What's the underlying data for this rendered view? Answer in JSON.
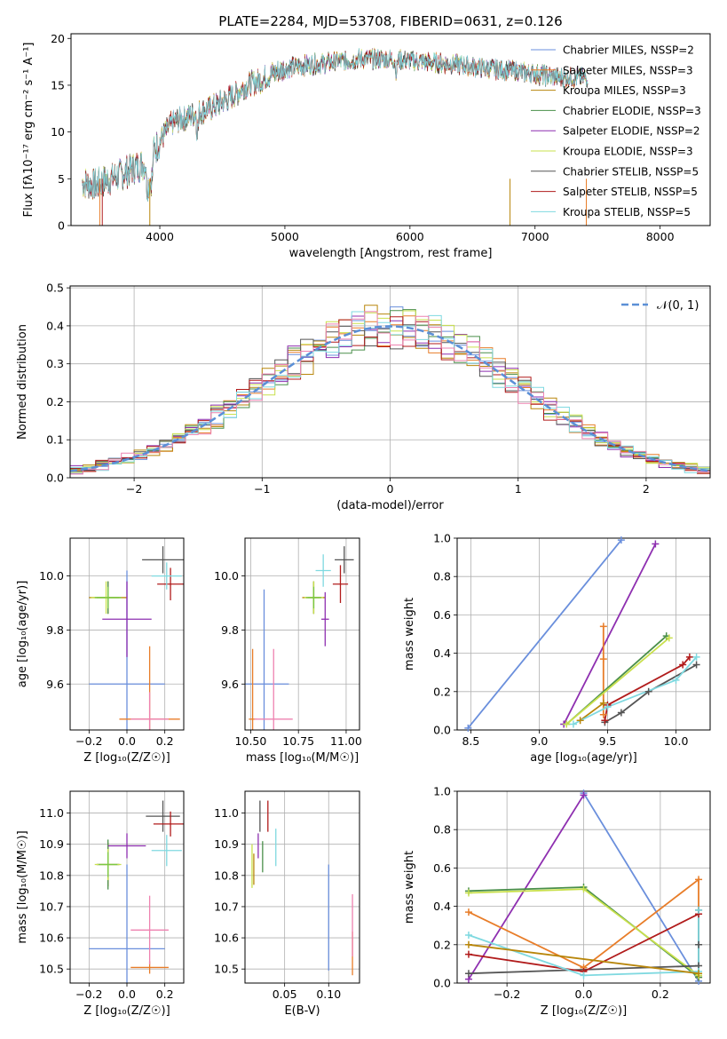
{
  "figure": {
    "title": "PLATE=2284, MJD=53708, FIBERID=0631, z=0.126"
  },
  "palette": [
    "#6a8fdc",
    "#e87d29",
    "#b8860b",
    "#4a8f4a",
    "#8e2fb0",
    "#c9e04d",
    "#555555",
    "#b11b1b",
    "#7fd9e0",
    "#7ac943",
    "#ee82b0"
  ],
  "chart_data": [
    {
      "id": "spectrum",
      "type": "line",
      "xlabel": "wavelength [Angstrom, rest frame]",
      "ylabel": "Flux [fλ10⁻¹⁷ erg cm⁻² s⁻¹ A⁻¹]",
      "xlim": [
        3290,
        8400
      ],
      "ylim": [
        0,
        20.5
      ],
      "xticks": [
        4000,
        5000,
        6000,
        7000,
        8000
      ],
      "yticks": [
        0,
        5,
        10,
        15,
        20
      ],
      "legend_position": "top-right",
      "legend": [
        {
          "label": "Chabrier MILES, NSSP=2",
          "color": "#6a8fdc"
        },
        {
          "label": "Salpeter MILES, NSSP=3",
          "color": "#e87d29"
        },
        {
          "label": "Kroupa MILES, NSSP=3",
          "color": "#b8860b"
        },
        {
          "label": "Chabrier ELODIE, NSSP=3",
          "color": "#4a8f4a"
        },
        {
          "label": "Salpeter ELODIE, NSSP=2",
          "color": "#8e2fb0"
        },
        {
          "label": "Kroupa ELODIE, NSSP=3",
          "color": "#c9e04d"
        },
        {
          "label": "Chabrier STELIB, NSSP=5",
          "color": "#555555"
        },
        {
          "label": "Salpeter STELIB, NSSP=5",
          "color": "#b11b1b"
        },
        {
          "label": "Kroupa STELIB, NSSP=5",
          "color": "#7fd9e0"
        }
      ],
      "continuum": {
        "x": [
          3380,
          3500,
          3600,
          3700,
          3800,
          3900,
          4000,
          4100,
          4200,
          4300,
          4400,
          4500,
          4600,
          4700,
          4800,
          4900,
          5000,
          5200,
          5400,
          5600,
          5800,
          6000,
          6200,
          6400,
          6600,
          6800,
          7000,
          7200
        ],
        "y": [
          4.6,
          4.4,
          5.0,
          5.5,
          6.2,
          6.8,
          9.0,
          11.0,
          11.5,
          12.0,
          12.5,
          13.2,
          14.0,
          15.0,
          15.5,
          16.2,
          16.8,
          17.2,
          17.5,
          17.8,
          17.8,
          17.6,
          17.4,
          17.2,
          16.8,
          16.6,
          16.2,
          15.8
        ]
      }
    },
    {
      "id": "residuals",
      "type": "histogram",
      "xlabel": "(data-model)/error",
      "ylabel": "Normed distribution",
      "xlim": [
        -2.5,
        2.5
      ],
      "ylim": [
        0,
        0.505
      ],
      "xticks": [
        -2,
        -1,
        0,
        1,
        2
      ],
      "yticks": [
        0.0,
        0.1,
        0.2,
        0.3,
        0.4,
        0.5
      ],
      "legend_position": "top-right",
      "legend": [
        {
          "label": "𝒩(0, 1)",
          "color": "#5b8fd6",
          "style": "dashed"
        }
      ]
    },
    {
      "id": "age-vs-Z",
      "type": "scatter",
      "xlabel": "Z [log₁₀(Z/Z☉)]",
      "ylabel": "age  [log₁₀(age/yr)]",
      "xlim": [
        -0.3,
        0.3
      ],
      "ylim": [
        9.43,
        10.14
      ],
      "xticks": [
        -0.2,
        0.0,
        0.2
      ],
      "yticks": [
        9.6,
        9.8,
        10.0
      ],
      "points": [
        {
          "x": 0.0,
          "y": 9.6,
          "xerr": 0.2,
          "yerr": 0.42,
          "color": "#6a8fdc"
        },
        {
          "x": 0.12,
          "y": 9.47,
          "xerr": 0.16,
          "yerr": 0.27,
          "color": "#e87d29"
        },
        {
          "x": -0.1,
          "y": 9.92,
          "xerr": 0.1,
          "yerr": 0.06,
          "color": "#b8860b"
        },
        {
          "x": -0.1,
          "y": 9.92,
          "xerr": 0.06,
          "yerr": 0.06,
          "color": "#4a8f4a"
        },
        {
          "x": 0.0,
          "y": 9.84,
          "xerr": 0.13,
          "yerr": 0.14,
          "color": "#8e2fb0"
        },
        {
          "x": -0.11,
          "y": 9.92,
          "xerr": 0.08,
          "yerr": 0.06,
          "color": "#c9e04d"
        },
        {
          "x": 0.19,
          "y": 10.06,
          "xerr": 0.11,
          "yerr": 0.05,
          "color": "#555555"
        },
        {
          "x": 0.23,
          "y": 9.97,
          "xerr": 0.07,
          "yerr": 0.06,
          "color": "#b11b1b"
        },
        {
          "x": 0.21,
          "y": 10.0,
          "xerr": 0.08,
          "yerr": 0.05,
          "color": "#7fd9e0"
        },
        {
          "x": -0.1,
          "y": 9.92,
          "xerr": 0.07,
          "yerr": 0.04,
          "color": "#7ac943"
        },
        {
          "x": 0.12,
          "y": 9.47,
          "xerr": 0.1,
          "yerr": 0.1,
          "color": "#ee82b0"
        }
      ]
    },
    {
      "id": "age-vs-mass",
      "type": "scatter",
      "xlabel": "mass [log₁₀(M/M☉)]",
      "ylabel": "",
      "xlim": [
        10.47,
        11.07
      ],
      "ylim": [
        9.43,
        10.14
      ],
      "xticks": [
        10.5,
        10.75,
        11.0
      ],
      "yticks": [
        9.6,
        9.8,
        10.0
      ],
      "points": [
        {
          "x": 10.57,
          "y": 9.6,
          "xerr": 0.13,
          "yerr": 0.35,
          "color": "#6a8fdc"
        },
        {
          "x": 10.51,
          "y": 9.47,
          "xerr": 0.02,
          "yerr": 0.26,
          "color": "#e87d29"
        },
        {
          "x": 10.83,
          "y": 9.92,
          "xerr": 0.06,
          "yerr": 0.06,
          "color": "#b8860b"
        },
        {
          "x": 10.83,
          "y": 9.92,
          "xerr": 0.03,
          "yerr": 0.06,
          "color": "#4a8f4a"
        },
        {
          "x": 10.89,
          "y": 9.84,
          "xerr": 0.02,
          "yerr": 0.1,
          "color": "#8e2fb0"
        },
        {
          "x": 10.83,
          "y": 9.92,
          "xerr": 0.05,
          "yerr": 0.06,
          "color": "#c9e04d"
        },
        {
          "x": 10.99,
          "y": 10.06,
          "xerr": 0.05,
          "yerr": 0.05,
          "color": "#555555"
        },
        {
          "x": 10.97,
          "y": 9.97,
          "xerr": 0.04,
          "yerr": 0.07,
          "color": "#b11b1b"
        },
        {
          "x": 10.88,
          "y": 10.02,
          "xerr": 0.04,
          "yerr": 0.06,
          "color": "#7fd9e0"
        },
        {
          "x": 10.83,
          "y": 9.92,
          "xerr": 0.04,
          "yerr": 0.04,
          "color": "#7ac943"
        },
        {
          "x": 10.62,
          "y": 9.47,
          "xerr": 0.1,
          "yerr": 0.26,
          "color": "#ee82b0"
        }
      ]
    },
    {
      "id": "massweight-vs-age",
      "type": "line",
      "xlabel": "age  [log₁₀(age/yr)]",
      "ylabel": "mass weight",
      "xlim": [
        8.4,
        10.25
      ],
      "ylim": [
        0,
        1
      ],
      "xticks": [
        8.5,
        9.0,
        9.5,
        10.0
      ],
      "yticks": [
        0.0,
        0.2,
        0.4,
        0.6,
        0.8,
        1.0
      ],
      "series": [
        {
          "color": "#6a8fdc",
          "x": [
            8.48,
            9.6
          ],
          "y": [
            0.01,
            0.99
          ]
        },
        {
          "color": "#8e2fb0",
          "x": [
            9.18,
            9.85
          ],
          "y": [
            0.03,
            0.97
          ]
        },
        {
          "color": "#e87d29",
          "x": [
            9.47,
            9.47,
            9.47
          ],
          "y": [
            0.08,
            0.37,
            0.54
          ]
        },
        {
          "color": "#b8860b",
          "x": [
            9.3,
            9.47
          ],
          "y": [
            0.05,
            0.14
          ]
        },
        {
          "color": "#4a8f4a",
          "x": [
            9.2,
            9.93
          ],
          "y": [
            0.03,
            0.49
          ]
        },
        {
          "color": "#c9e04d",
          "x": [
            9.2,
            9.95
          ],
          "y": [
            0.03,
            0.48
          ]
        },
        {
          "color": "#555555",
          "x": [
            9.48,
            9.6,
            9.8,
            10.15
          ],
          "y": [
            0.04,
            0.09,
            0.2,
            0.34
          ]
        },
        {
          "color": "#b11b1b",
          "x": [
            9.48,
            9.5,
            10.05,
            10.1
          ],
          "y": [
            0.05,
            0.13,
            0.34,
            0.38
          ]
        },
        {
          "color": "#7fd9e0",
          "x": [
            9.25,
            9.5,
            10.0,
            10.15
          ],
          "y": [
            0.03,
            0.12,
            0.26,
            0.38
          ]
        }
      ]
    },
    {
      "id": "mass-vs-Z",
      "type": "scatter",
      "xlabel": "Z [log₁₀(Z/Z☉)]",
      "ylabel": "mass [log₁₀(M/M☉)]",
      "xlim": [
        -0.3,
        0.3
      ],
      "ylim": [
        10.455,
        11.07
      ],
      "xticks": [
        -0.2,
        0.0,
        0.2
      ],
      "yticks": [
        10.5,
        10.6,
        10.7,
        10.8,
        10.9,
        11.0
      ],
      "points": [
        {
          "x": 0.0,
          "y": 10.565,
          "xerr": 0.2,
          "yerr": 0.27,
          "color": "#6a8fdc"
        },
        {
          "x": 0.12,
          "y": 10.505,
          "xerr": 0.1,
          "yerr": 0.02,
          "color": "#e87d29"
        },
        {
          "x": -0.1,
          "y": 10.835,
          "xerr": 0.06,
          "yerr": 0.07,
          "color": "#b8860b"
        },
        {
          "x": -0.1,
          "y": 10.835,
          "xerr": 0.06,
          "yerr": 0.08,
          "color": "#4a8f4a"
        },
        {
          "x": 0.0,
          "y": 10.895,
          "xerr": 0.1,
          "yerr": 0.04,
          "color": "#8e2fb0"
        },
        {
          "x": -0.1,
          "y": 10.835,
          "xerr": 0.07,
          "yerr": 0.05,
          "color": "#c9e04d"
        },
        {
          "x": 0.19,
          "y": 10.99,
          "xerr": 0.09,
          "yerr": 0.05,
          "color": "#555555"
        },
        {
          "x": 0.23,
          "y": 10.965,
          "xerr": 0.09,
          "yerr": 0.04,
          "color": "#b11b1b"
        },
        {
          "x": 0.21,
          "y": 10.88,
          "xerr": 0.08,
          "yerr": 0.05,
          "color": "#7fd9e0"
        },
        {
          "x": -0.1,
          "y": 10.835,
          "xerr": 0.05,
          "yerr": 0.04,
          "color": "#7ac943"
        },
        {
          "x": 0.12,
          "y": 10.625,
          "xerr": 0.1,
          "yerr": 0.11,
          "color": "#ee82b0"
        }
      ]
    },
    {
      "id": "mass-vs-EBV",
      "type": "scatter",
      "xlabel": "E(B-V)",
      "ylabel": "",
      "xlim": [
        0.005,
        0.135
      ],
      "ylim": [
        10.455,
        11.07
      ],
      "xticks": [
        0.05,
        0.1
      ],
      "yticks": [
        10.5,
        10.6,
        10.7,
        10.8,
        10.9,
        11.0
      ],
      "points": [
        {
          "x": 0.1,
          "y": 10.665,
          "yerr": 0.17,
          "color": "#6a8fdc"
        },
        {
          "x": 0.127,
          "y": 10.55,
          "yerr": 0.07,
          "color": "#e87d29"
        },
        {
          "x": 0.015,
          "y": 10.82,
          "yerr": 0.05,
          "color": "#b8860b"
        },
        {
          "x": 0.025,
          "y": 10.86,
          "yerr": 0.05,
          "color": "#4a8f4a"
        },
        {
          "x": 0.02,
          "y": 10.895,
          "yerr": 0.04,
          "color": "#8e2fb0"
        },
        {
          "x": 0.013,
          "y": 10.83,
          "yerr": 0.07,
          "color": "#c9e04d"
        },
        {
          "x": 0.022,
          "y": 10.99,
          "yerr": 0.05,
          "color": "#555555"
        },
        {
          "x": 0.031,
          "y": 10.99,
          "yerr": 0.05,
          "color": "#b11b1b"
        },
        {
          "x": 0.04,
          "y": 10.89,
          "yerr": 0.06,
          "color": "#7fd9e0"
        },
        {
          "x": 0.127,
          "y": 10.64,
          "yerr": 0.1,
          "color": "#ee82b0"
        }
      ]
    },
    {
      "id": "massweight-vs-Z",
      "type": "line",
      "xlabel": "Z [log₁₀(Z/Z☉)]",
      "ylabel": "mass weight",
      "xlim": [
        -0.33,
        0.33
      ],
      "ylim": [
        0,
        1
      ],
      "xticks": [
        -0.2,
        0.0,
        0.2
      ],
      "yticks": [
        0.0,
        0.2,
        0.4,
        0.6,
        0.8,
        1.0
      ],
      "series": [
        {
          "color": "#6a8fdc",
          "x": [
            0.0,
            0.3
          ],
          "y": [
            0.99,
            0.01
          ]
        },
        {
          "color": "#8e2fb0",
          "x": [
            -0.3,
            0.0
          ],
          "y": [
            0.02,
            0.98
          ]
        },
        {
          "color": "#e87d29",
          "x": [
            -0.3,
            0.0,
            0.3,
            0.3
          ],
          "y": [
            0.37,
            0.08,
            0.54,
            0.03
          ]
        },
        {
          "color": "#4a8f4a",
          "x": [
            -0.3,
            0.0,
            0.3
          ],
          "y": [
            0.48,
            0.5,
            0.03
          ]
        },
        {
          "color": "#c9e04d",
          "x": [
            -0.3,
            0.0,
            0.3
          ],
          "y": [
            0.47,
            0.49,
            0.04
          ]
        },
        {
          "color": "#555555",
          "x": [
            -0.3,
            0.3,
            0.3,
            0.3
          ],
          "y": [
            0.05,
            0.09,
            0.2,
            0.38
          ]
        },
        {
          "color": "#b11b1b",
          "x": [
            -0.3,
            0.0,
            0.3
          ],
          "y": [
            0.15,
            0.06,
            0.36
          ]
        },
        {
          "color": "#7fd9e0",
          "x": [
            -0.3,
            0.0,
            0.3,
            0.3
          ],
          "y": [
            0.25,
            0.04,
            0.06,
            0.38
          ]
        },
        {
          "color": "#b8860b",
          "x": [
            -0.3,
            0.3
          ],
          "y": [
            0.2,
            0.05
          ]
        }
      ]
    }
  ]
}
